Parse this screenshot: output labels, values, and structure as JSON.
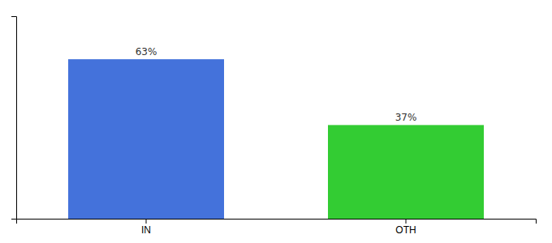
{
  "chart_data": {
    "type": "bar",
    "categories": [
      "IN",
      "OTH"
    ],
    "values": [
      63,
      37
    ],
    "value_labels": [
      "63%",
      "37%"
    ],
    "colors": [
      "#4472db",
      "#33cc33"
    ],
    "ylim": [
      0,
      80
    ],
    "yticks": [],
    "tick_labels": "x"
  }
}
